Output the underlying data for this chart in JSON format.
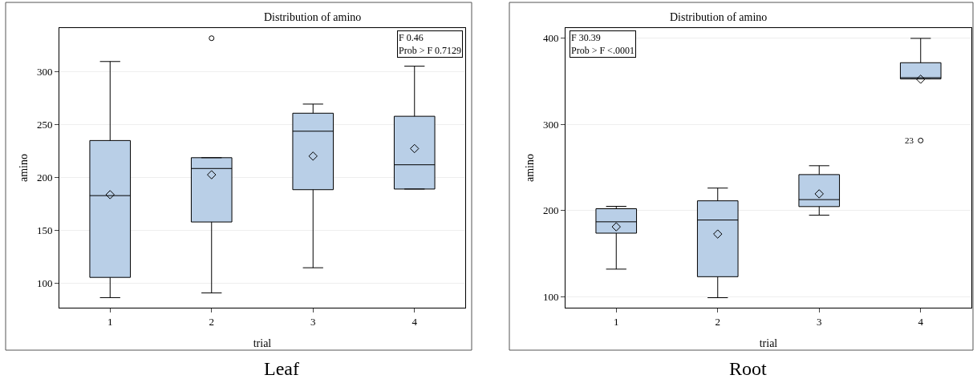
{
  "chart_data": [
    {
      "type": "box",
      "title": "Distribution of amino",
      "xlabel": "trial",
      "ylabel": "amino",
      "categories": [
        "1",
        "2",
        "3",
        "4"
      ],
      "color": "#b9cfe7",
      "boxes": [
        {
          "low": 86.5,
          "q1": 105.6,
          "median": 182.8,
          "q3": 234.8,
          "high": 309.4,
          "mean": 183.7
        },
        {
          "low": 90.9,
          "q1": 157.9,
          "median": 208.4,
          "q3": 218.6,
          "high": 218.6,
          "mean": 202.5,
          "outliers": [
            331.4
          ]
        },
        {
          "low": 114.7,
          "q1": 188.4,
          "median": 243.6,
          "q3": 260.6,
          "high": 269.2,
          "mean": 220.1
        },
        {
          "low": 189,
          "q1": 189,
          "median": 211.9,
          "q3": 257.7,
          "high": 305,
          "mean": 227.2
        }
      ],
      "ylim": [
        77,
        341
      ],
      "yticks": [
        100,
        150,
        200,
        250,
        300
      ],
      "grid": "y",
      "annotations": [
        "F 0.46\nProb > F 0.7129",
        "Leaf"
      ]
    },
    {
      "type": "box",
      "title": "Distribution of amino",
      "xlabel": "trial",
      "ylabel": "amino",
      "categories": [
        "1",
        "2",
        "3",
        "4"
      ],
      "color": "#b9cfe7",
      "boxes": [
        {
          "low": 131.8,
          "q1": 173.6,
          "median": 186.8,
          "q3": 202,
          "high": 204.8,
          "mean": 181
        },
        {
          "low": 98.6,
          "q1": 123,
          "median": 188.9,
          "q3": 211.2,
          "high": 226,
          "mean": 172.6
        },
        {
          "low": 194.5,
          "q1": 204.5,
          "median": 212.6,
          "q3": 241.7,
          "high": 252,
          "mean": 219.3
        },
        {
          "low": 352.9,
          "q1": 352.9,
          "median": 354.3,
          "q3": 371.7,
          "high": 400,
          "mean": 352.5,
          "outliers": [
            281.3
          ]
        }
      ],
      "ylim": [
        87,
        412
      ],
      "yticks": [
        100,
        200,
        300,
        400
      ],
      "grid": "y",
      "annotations": [
        "F 30.39\nProb > F <.0001",
        "Root",
        "23"
      ]
    }
  ]
}
